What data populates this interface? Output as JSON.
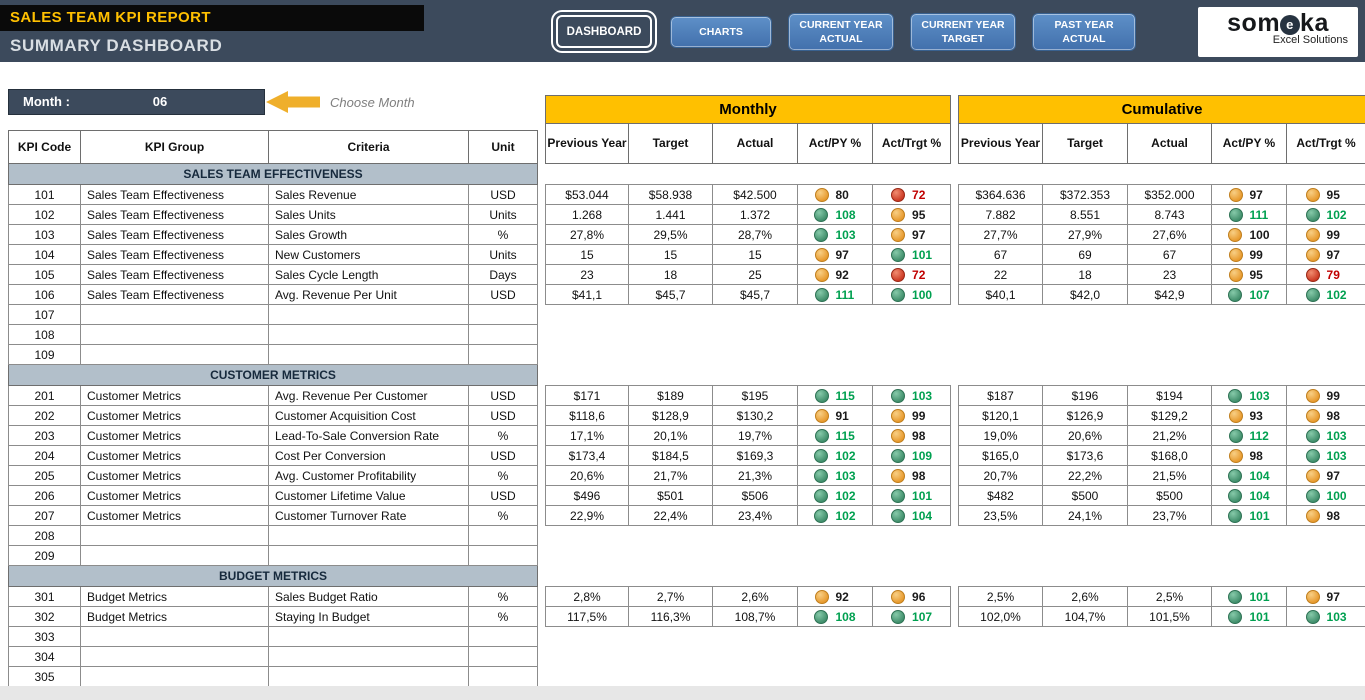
{
  "colors": {
    "header_bg": "#3C4A5C",
    "accent_yellow": "#FFC000",
    "arrow_yellow": "#EFAF2B",
    "button_blue": "#4A7DBD",
    "section_band": "#B2BFCA",
    "status_green": "#4A9B77",
    "status_amber": "#EFA23B",
    "status_red": "#D64530",
    "green_text": "#00A050",
    "red_text": "#C00000"
  },
  "header": {
    "report_title": "SALES TEAM KPI REPORT",
    "page_title": "SUMMARY DASHBOARD",
    "nav": {
      "dashboard": "DASHBOARD",
      "charts": "CHARTS",
      "current_year_actual": "CURRENT YEAR ACTUAL",
      "current_year_target": "CURRENT YEAR TARGET",
      "past_year_actual": "PAST YEAR ACTUAL"
    },
    "logo": {
      "brand_prefix": "som",
      "brand_mid": "e",
      "brand_suffix": "ka",
      "tagline": "Excel Solutions"
    }
  },
  "month_selector": {
    "label": "Month :",
    "value": "06",
    "hint": "Choose Month"
  },
  "kpi_table": {
    "headers": {
      "code": "KPI Code",
      "group": "KPI Group",
      "criteria": "Criteria",
      "unit": "Unit"
    }
  },
  "monthly_table": {
    "title": "Monthly",
    "headers": {
      "previous_year": "Previous Year",
      "target": "Target",
      "actual": "Actual",
      "act_py": "Act/PY %",
      "act_trgt": "Act/Trgt %"
    }
  },
  "cumulative_table": {
    "title": "Cumulative",
    "headers": {
      "previous_year": "Previous Year",
      "target": "Target",
      "actual": "Actual",
      "act_py": "Act/PY %",
      "act_trgt": "Act/Trgt %"
    }
  },
  "rows": [
    {
      "kind": "section",
      "label": "SALES TEAM EFFECTIVENESS"
    },
    {
      "kind": "kpi",
      "code": "101",
      "group": "Sales Team Effectiveness",
      "criteria": "Sales Revenue",
      "unit": "USD",
      "monthly": {
        "previous_year": "$53.044",
        "target": "$58.938",
        "actual": "$42.500",
        "act_py": {
          "value": "80",
          "status": "amber"
        },
        "act_trgt": {
          "value": "72",
          "status": "red"
        }
      },
      "cumulative": {
        "previous_year": "$364.636",
        "target": "$372.353",
        "actual": "$352.000",
        "act_py": {
          "value": "97",
          "status": "amber"
        },
        "act_trgt": {
          "value": "95",
          "status": "amber"
        }
      }
    },
    {
      "kind": "kpi",
      "code": "102",
      "group": "Sales Team Effectiveness",
      "criteria": "Sales Units",
      "unit": "Units",
      "monthly": {
        "previous_year": "1.268",
        "target": "1.441",
        "actual": "1.372",
        "act_py": {
          "value": "108",
          "status": "green"
        },
        "act_trgt": {
          "value": "95",
          "status": "amber"
        }
      },
      "cumulative": {
        "previous_year": "7.882",
        "target": "8.551",
        "actual": "8.743",
        "act_py": {
          "value": "111",
          "status": "green"
        },
        "act_trgt": {
          "value": "102",
          "status": "green"
        }
      }
    },
    {
      "kind": "kpi",
      "code": "103",
      "group": "Sales Team Effectiveness",
      "criteria": "Sales Growth",
      "unit": "%",
      "monthly": {
        "previous_year": "27,8%",
        "target": "29,5%",
        "actual": "28,7%",
        "act_py": {
          "value": "103",
          "status": "green"
        },
        "act_trgt": {
          "value": "97",
          "status": "amber"
        }
      },
      "cumulative": {
        "previous_year": "27,7%",
        "target": "27,9%",
        "actual": "27,6%",
        "act_py": {
          "value": "100",
          "status": "amber"
        },
        "act_trgt": {
          "value": "99",
          "status": "amber"
        }
      }
    },
    {
      "kind": "kpi",
      "code": "104",
      "group": "Sales Team Effectiveness",
      "criteria": "New Customers",
      "unit": "Units",
      "monthly": {
        "previous_year": "15",
        "target": "15",
        "actual": "15",
        "act_py": {
          "value": "97",
          "status": "amber"
        },
        "act_trgt": {
          "value": "101",
          "status": "green"
        }
      },
      "cumulative": {
        "previous_year": "67",
        "target": "69",
        "actual": "67",
        "act_py": {
          "value": "99",
          "status": "amber"
        },
        "act_trgt": {
          "value": "97",
          "status": "amber"
        }
      }
    },
    {
      "kind": "kpi",
      "code": "105",
      "group": "Sales Team Effectiveness",
      "criteria": "Sales Cycle Length",
      "unit": "Days",
      "monthly": {
        "previous_year": "23",
        "target": "18",
        "actual": "25",
        "act_py": {
          "value": "92",
          "status": "amber"
        },
        "act_trgt": {
          "value": "72",
          "status": "red"
        }
      },
      "cumulative": {
        "previous_year": "22",
        "target": "18",
        "actual": "23",
        "act_py": {
          "value": "95",
          "status": "amber"
        },
        "act_trgt": {
          "value": "79",
          "status": "red"
        }
      }
    },
    {
      "kind": "kpi",
      "code": "106",
      "group": "Sales Team Effectiveness",
      "criteria": "Avg. Revenue Per Unit",
      "unit": "USD",
      "monthly": {
        "previous_year": "$41,1",
        "target": "$45,7",
        "actual": "$45,7",
        "act_py": {
          "value": "111",
          "status": "green"
        },
        "act_trgt": {
          "value": "100",
          "status": "green"
        }
      },
      "cumulative": {
        "previous_year": "$40,1",
        "target": "$42,0",
        "actual": "$42,9",
        "act_py": {
          "value": "107",
          "status": "green"
        },
        "act_trgt": {
          "value": "102",
          "status": "green"
        }
      }
    },
    {
      "kind": "kpi",
      "code": "107"
    },
    {
      "kind": "kpi",
      "code": "108"
    },
    {
      "kind": "kpi",
      "code": "109"
    },
    {
      "kind": "section",
      "label": "CUSTOMER METRICS"
    },
    {
      "kind": "kpi",
      "code": "201",
      "group": "Customer Metrics",
      "criteria": "Avg. Revenue Per Customer",
      "unit": "USD",
      "monthly": {
        "previous_year": "$171",
        "target": "$189",
        "actual": "$195",
        "act_py": {
          "value": "115",
          "status": "green"
        },
        "act_trgt": {
          "value": "103",
          "status": "green"
        }
      },
      "cumulative": {
        "previous_year": "$187",
        "target": "$196",
        "actual": "$194",
        "act_py": {
          "value": "103",
          "status": "green"
        },
        "act_trgt": {
          "value": "99",
          "status": "amber"
        }
      }
    },
    {
      "kind": "kpi",
      "code": "202",
      "group": "Customer Metrics",
      "criteria": "Customer Acquisition Cost",
      "unit": "USD",
      "monthly": {
        "previous_year": "$118,6",
        "target": "$128,9",
        "actual": "$130,2",
        "act_py": {
          "value": "91",
          "status": "amber"
        },
        "act_trgt": {
          "value": "99",
          "status": "amber"
        }
      },
      "cumulative": {
        "previous_year": "$120,1",
        "target": "$126,9",
        "actual": "$129,2",
        "act_py": {
          "value": "93",
          "status": "amber"
        },
        "act_trgt": {
          "value": "98",
          "status": "amber"
        }
      }
    },
    {
      "kind": "kpi",
      "code": "203",
      "group": "Customer Metrics",
      "criteria": "Lead-To-Sale Conversion Rate",
      "unit": "%",
      "monthly": {
        "previous_year": "17,1%",
        "target": "20,1%",
        "actual": "19,7%",
        "act_py": {
          "value": "115",
          "status": "green"
        },
        "act_trgt": {
          "value": "98",
          "status": "amber"
        }
      },
      "cumulative": {
        "previous_year": "19,0%",
        "target": "20,6%",
        "actual": "21,2%",
        "act_py": {
          "value": "112",
          "status": "green"
        },
        "act_trgt": {
          "value": "103",
          "status": "green"
        }
      }
    },
    {
      "kind": "kpi",
      "code": "204",
      "group": "Customer Metrics",
      "criteria": "Cost Per Conversion",
      "unit": "USD",
      "monthly": {
        "previous_year": "$173,4",
        "target": "$184,5",
        "actual": "$169,3",
        "act_py": {
          "value": "102",
          "status": "green"
        },
        "act_trgt": {
          "value": "109",
          "status": "green"
        }
      },
      "cumulative": {
        "previous_year": "$165,0",
        "target": "$173,6",
        "actual": "$168,0",
        "act_py": {
          "value": "98",
          "status": "amber"
        },
        "act_trgt": {
          "value": "103",
          "status": "green"
        }
      }
    },
    {
      "kind": "kpi",
      "code": "205",
      "group": "Customer Metrics",
      "criteria": "Avg. Customer Profitability",
      "unit": "%",
      "monthly": {
        "previous_year": "20,6%",
        "target": "21,7%",
        "actual": "21,3%",
        "act_py": {
          "value": "103",
          "status": "green"
        },
        "act_trgt": {
          "value": "98",
          "status": "amber"
        }
      },
      "cumulative": {
        "previous_year": "20,7%",
        "target": "22,2%",
        "actual": "21,5%",
        "act_py": {
          "value": "104",
          "status": "green"
        },
        "act_trgt": {
          "value": "97",
          "status": "amber"
        }
      }
    },
    {
      "kind": "kpi",
      "code": "206",
      "group": "Customer Metrics",
      "criteria": "Customer Lifetime Value",
      "unit": "USD",
      "monthly": {
        "previous_year": "$496",
        "target": "$501",
        "actual": "$506",
        "act_py": {
          "value": "102",
          "status": "green"
        },
        "act_trgt": {
          "value": "101",
          "status": "green"
        }
      },
      "cumulative": {
        "previous_year": "$482",
        "target": "$500",
        "actual": "$500",
        "act_py": {
          "value": "104",
          "status": "green"
        },
        "act_trgt": {
          "value": "100",
          "status": "green"
        }
      }
    },
    {
      "kind": "kpi",
      "code": "207",
      "group": "Customer Metrics",
      "criteria": "Customer Turnover Rate",
      "unit": "%",
      "monthly": {
        "previous_year": "22,9%",
        "target": "22,4%",
        "actual": "23,4%",
        "act_py": {
          "value": "102",
          "status": "green"
        },
        "act_trgt": {
          "value": "104",
          "status": "green"
        }
      },
      "cumulative": {
        "previous_year": "23,5%",
        "target": "24,1%",
        "actual": "23,7%",
        "act_py": {
          "value": "101",
          "status": "green"
        },
        "act_trgt": {
          "value": "98",
          "status": "amber"
        }
      }
    },
    {
      "kind": "kpi",
      "code": "208"
    },
    {
      "kind": "kpi",
      "code": "209"
    },
    {
      "kind": "section",
      "label": "BUDGET METRICS"
    },
    {
      "kind": "kpi",
      "code": "301",
      "group": "Budget Metrics",
      "criteria": "Sales Budget Ratio",
      "unit": "%",
      "monthly": {
        "previous_year": "2,8%",
        "target": "2,7%",
        "actual": "2,6%",
        "act_py": {
          "value": "92",
          "status": "amber"
        },
        "act_trgt": {
          "value": "96",
          "status": "amber"
        }
      },
      "cumulative": {
        "previous_year": "2,5%",
        "target": "2,6%",
        "actual": "2,5%",
        "act_py": {
          "value": "101",
          "status": "green"
        },
        "act_trgt": {
          "value": "97",
          "status": "amber"
        }
      }
    },
    {
      "kind": "kpi",
      "code": "302",
      "group": "Budget Metrics",
      "criteria": "Staying In Budget",
      "unit": "%",
      "monthly": {
        "previous_year": "117,5%",
        "target": "116,3%",
        "actual": "108,7%",
        "act_py": {
          "value": "108",
          "status": "green"
        },
        "act_trgt": {
          "value": "107",
          "status": "green"
        }
      },
      "cumulative": {
        "previous_year": "102,0%",
        "target": "104,7%",
        "actual": "101,5%",
        "act_py": {
          "value": "101",
          "status": "green"
        },
        "act_trgt": {
          "value": "103",
          "status": "green"
        }
      }
    },
    {
      "kind": "kpi",
      "code": "303"
    },
    {
      "kind": "kpi",
      "code": "304"
    },
    {
      "kind": "kpi",
      "code": "305"
    }
  ]
}
